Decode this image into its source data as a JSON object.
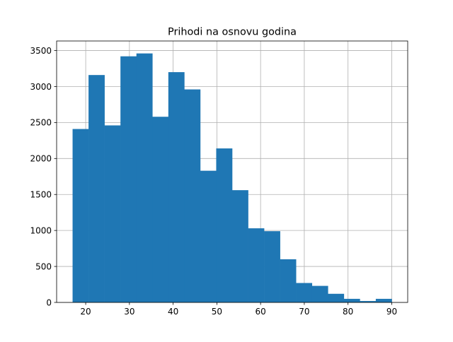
{
  "chart_data": {
    "type": "bar",
    "title": "Prihodi na osnovu godina",
    "xlabel": "",
    "ylabel": "",
    "bin_edges": [
      17,
      20.65,
      24.3,
      27.95,
      31.6,
      35.25,
      38.9,
      42.55,
      46.2,
      49.85,
      53.5,
      57.15,
      60.8,
      64.45,
      68.1,
      71.75,
      75.4,
      79.05,
      82.7,
      86.35,
      90
    ],
    "values": [
      2410,
      3160,
      2460,
      3420,
      3460,
      2580,
      3200,
      2960,
      1830,
      2140,
      1560,
      1030,
      990,
      600,
      270,
      230,
      120,
      50,
      20,
      50
    ],
    "xlim": [
      13.35,
      93.65
    ],
    "ylim": [
      0,
      3633
    ],
    "x_ticks": [
      20,
      30,
      40,
      50,
      60,
      70,
      80,
      90
    ],
    "y_ticks": [
      0,
      500,
      1000,
      1500,
      2000,
      2500,
      3000,
      3500
    ],
    "grid": true,
    "bar_color": "#1f77b4",
    "grid_color": "#b0b0b0"
  }
}
